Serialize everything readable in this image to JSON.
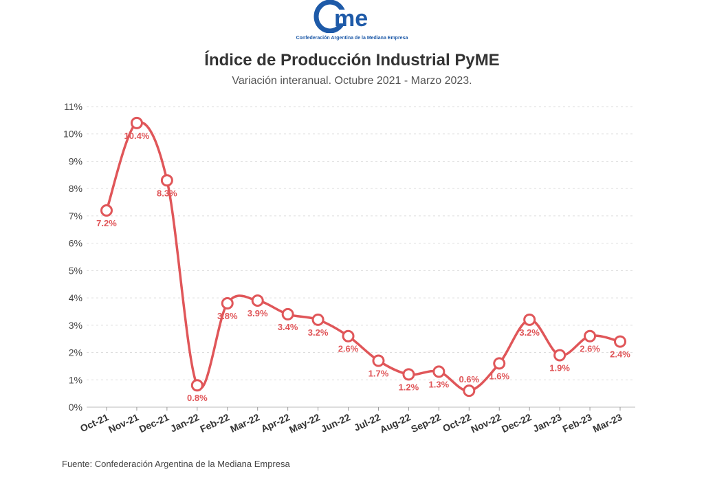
{
  "logo": {
    "wordmark": "came",
    "tagline": "Confederación Argentina de la Mediana Empresa",
    "color": "#1e5aa8"
  },
  "chart_data": {
    "type": "line",
    "title": "Índice de Producción Industrial PyME",
    "subtitle": "Variación interanual. Octubre 2021 - Marzo 2023.",
    "categories": [
      "Oct-21",
      "Nov-21",
      "Dec-21",
      "Jan-22",
      "Feb-22",
      "Mar-22",
      "Apr-22",
      "May-22",
      "Jun-22",
      "Jul-22",
      "Aug-22",
      "Sep-22",
      "Oct-22",
      "Nov-22",
      "Dec-22",
      "Jan-23",
      "Feb-23",
      "Mar-23"
    ],
    "series": [
      {
        "values": [
          7.2,
          10.4,
          8.3,
          0.8,
          3.8,
          3.9,
          3.4,
          3.2,
          2.6,
          1.7,
          1.2,
          1.3,
          0.6,
          1.6,
          3.2,
          1.9,
          2.6,
          2.4
        ],
        "labels": [
          "7.2%",
          "10.4%",
          "8.3%",
          "0.8%",
          "3.8%",
          "3.9%",
          "3.4%",
          "3.2%",
          "2.6%",
          "1.7%",
          "1.2%",
          "1.3%",
          "0.6%",
          "1.6%",
          "3.2%",
          "1.9%",
          "2.6%",
          "2.4%"
        ],
        "color": "#e05659"
      }
    ],
    "ylim": [
      0,
      11
    ],
    "yticks": [
      "0%",
      "1%",
      "2%",
      "3%",
      "4%",
      "5%",
      "6%",
      "7%",
      "8%",
      "9%",
      "10%",
      "11%"
    ],
    "grid": true,
    "xlabel": "",
    "ylabel": ""
  },
  "source": "Fuente: Confederación Argentina de la Mediana Empresa"
}
